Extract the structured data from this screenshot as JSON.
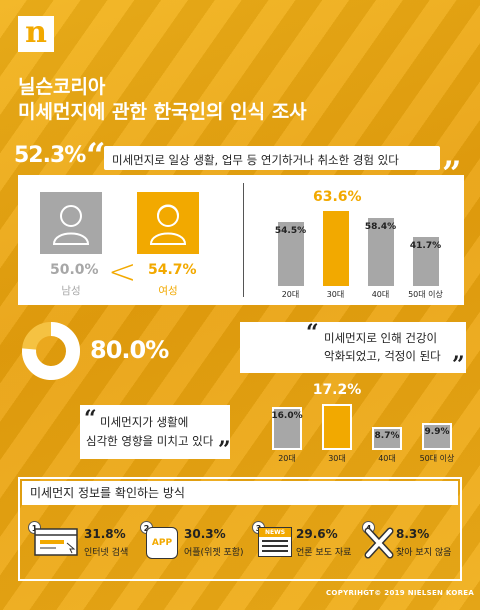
{
  "brand": "닐슨코리아",
  "title": "미세먼지에 관한 한국인의 인식 조사",
  "colors": {
    "accent": "#f2a900",
    "bg": "#efab15",
    "gray": "#a7a7a7"
  },
  "section1": {
    "headline_pct": "52.3%",
    "quote": "미세먼지로 일상 생활, 업무 등 연기하거나 취소한 경험 있다",
    "gender": {
      "male": {
        "pct": "50.0%",
        "label": "남성"
      },
      "female": {
        "pct": "54.7%",
        "label": "여성"
      },
      "comparator": "<"
    }
  },
  "section2": {
    "headline_pct": "80.0%",
    "quote_line1": "미세먼지로 인해 건강이",
    "quote_line2": "악화되었고, 걱정이 된다",
    "quote2_line1": "미세먼지가 생활에",
    "quote2_line2": "심각한 영향을 미치고 있다"
  },
  "chart_data": [
    {
      "type": "bar",
      "categories": [
        "20대",
        "30대",
        "40대",
        "50대 이상"
      ],
      "values": [
        54.5,
        63.6,
        58.4,
        41.7
      ],
      "value_labels": [
        "54.5%",
        "63.6%",
        "58.4%",
        "41.7%"
      ],
      "highlight": 1,
      "ylim": [
        0,
        70
      ]
    },
    {
      "type": "bar",
      "categories": [
        "20대",
        "30대",
        "40대",
        "50대 이상"
      ],
      "values": [
        16.0,
        17.2,
        8.7,
        9.9
      ],
      "value_labels": [
        "16.0%",
        "17.2%",
        "8.7%",
        "9.9%"
      ],
      "highlight": 1,
      "ylim": [
        0,
        20
      ]
    }
  ],
  "methods": {
    "title": "미세먼지 정보를 확인하는 방식",
    "items": [
      {
        "num": "1",
        "icon": "browser-icon",
        "pct": "31.8%",
        "label": "인터넷 검색"
      },
      {
        "num": "2",
        "icon": "app-icon",
        "icon_text": "APP",
        "pct": "30.3%",
        "label": "어플(위젯 포함)"
      },
      {
        "num": "3",
        "icon": "newspaper-icon",
        "icon_text": "NEWS",
        "pct": "29.6%",
        "label": "언론 보도 자료"
      },
      {
        "num": "4",
        "icon": "x-mark-icon",
        "pct": "8.3%",
        "label": "찾아 보지 않음"
      }
    ]
  },
  "copyright": "COPYRIHGT© 2019 NIELSEN KOREA"
}
